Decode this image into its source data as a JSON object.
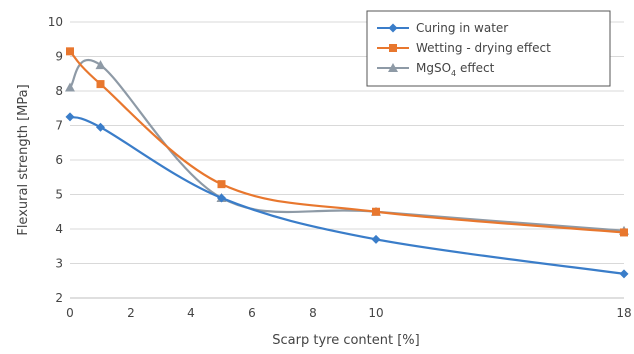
{
  "chart_data": {
    "type": "line",
    "title": "",
    "xlabel": "Scarp tyre content [%]",
    "ylabel": "Flexural strength [MPa]",
    "x_ticks": [
      "0",
      "2",
      "4",
      "6",
      "8",
      "10",
      "18"
    ],
    "y_ticks": [
      "2",
      "3",
      "4",
      "5",
      "6",
      "7",
      "8",
      "9",
      "10"
    ],
    "ylim": [
      2,
      10
    ],
    "grid": "horizontal",
    "legend_position": "top-right",
    "series": [
      {
        "name": "Curing in water",
        "color": "#3a7dc9",
        "marker": "diamond",
        "points": [
          {
            "x": "0",
            "y": 7.25
          },
          {
            "x": "1",
            "y": 6.95
          },
          {
            "x": "5",
            "y": 4.9
          },
          {
            "x": "10",
            "y": 3.7
          },
          {
            "x": "18",
            "y": 2.7
          }
        ]
      },
      {
        "name": "Wetting - drying effect",
        "color": "#e8772e",
        "marker": "square",
        "points": [
          {
            "x": "0",
            "y": 9.15
          },
          {
            "x": "1",
            "y": 8.2
          },
          {
            "x": "5",
            "y": 5.3
          },
          {
            "x": "10",
            "y": 4.5
          },
          {
            "x": "18",
            "y": 3.9
          }
        ]
      },
      {
        "name": "MgSO4 effect",
        "name_base": "MgSO",
        "name_sub": "4",
        "name_tail": " effect",
        "color": "#8e9aa6",
        "marker": "triangle",
        "points": [
          {
            "x": "0",
            "y": 8.1
          },
          {
            "x": "1",
            "y": 8.75
          },
          {
            "x": "5",
            "y": 4.9
          },
          {
            "x": "10",
            "y": 4.5
          },
          {
            "x": "18",
            "y": 3.95
          }
        ]
      }
    ]
  }
}
